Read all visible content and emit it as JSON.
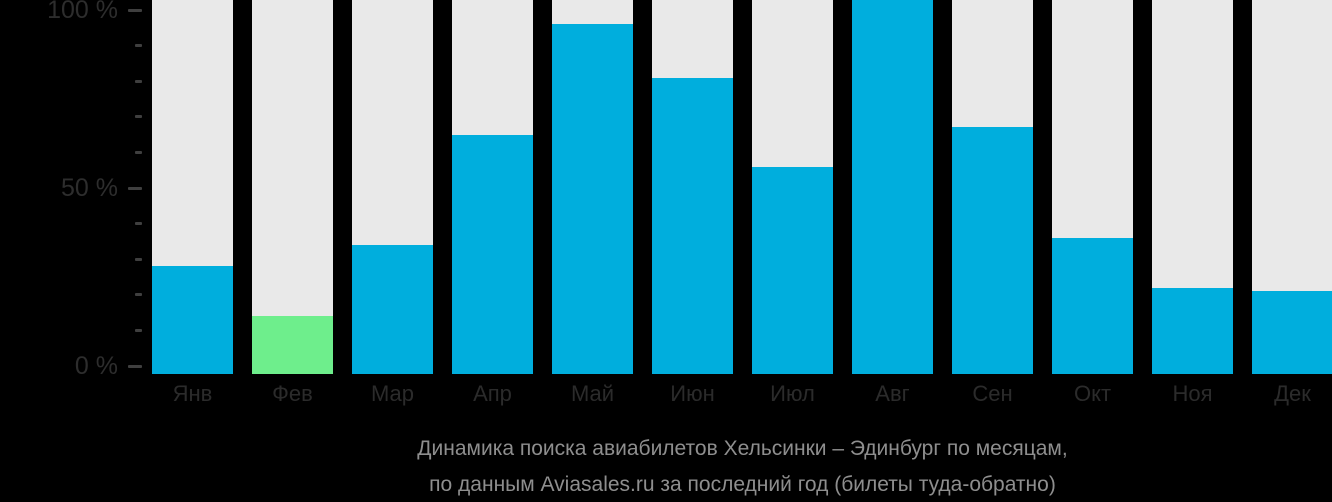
{
  "chart_data": {
    "type": "bar",
    "title": "Динамика поиска авиабилетов Хельсинки – Эдинбург по месяцам,",
    "subtitle": "по данным Aviasales.ru за последний год (билеты туда-обратно)",
    "categories": [
      "Янв",
      "Фев",
      "Мар",
      "Апр",
      "Май",
      "Июн",
      "Июл",
      "Авг",
      "Сен",
      "Окт",
      "Ноя",
      "Дек"
    ],
    "values": [
      28,
      14,
      34,
      65,
      96,
      81,
      56,
      100,
      67,
      36,
      22,
      21
    ],
    "highlight_index": 1,
    "ylim": [
      0,
      100
    ],
    "yticks": [
      {
        "value": 100,
        "label": "100 %"
      },
      {
        "value": 50,
        "label": "50 %"
      },
      {
        "value": 0,
        "label": "0 %"
      }
    ],
    "minor_tick_step": 10,
    "grid": "off",
    "legend": "none"
  },
  "colors": {
    "background": "#000000",
    "bar": "#00aedd",
    "highlight_bar": "#6eee8c",
    "track": "#e9e9e9",
    "axis_label": "#2d2d2d",
    "month_label": "#2b2b2b",
    "tick": "#3f3f3f",
    "title_text": "#8e8e8e"
  }
}
